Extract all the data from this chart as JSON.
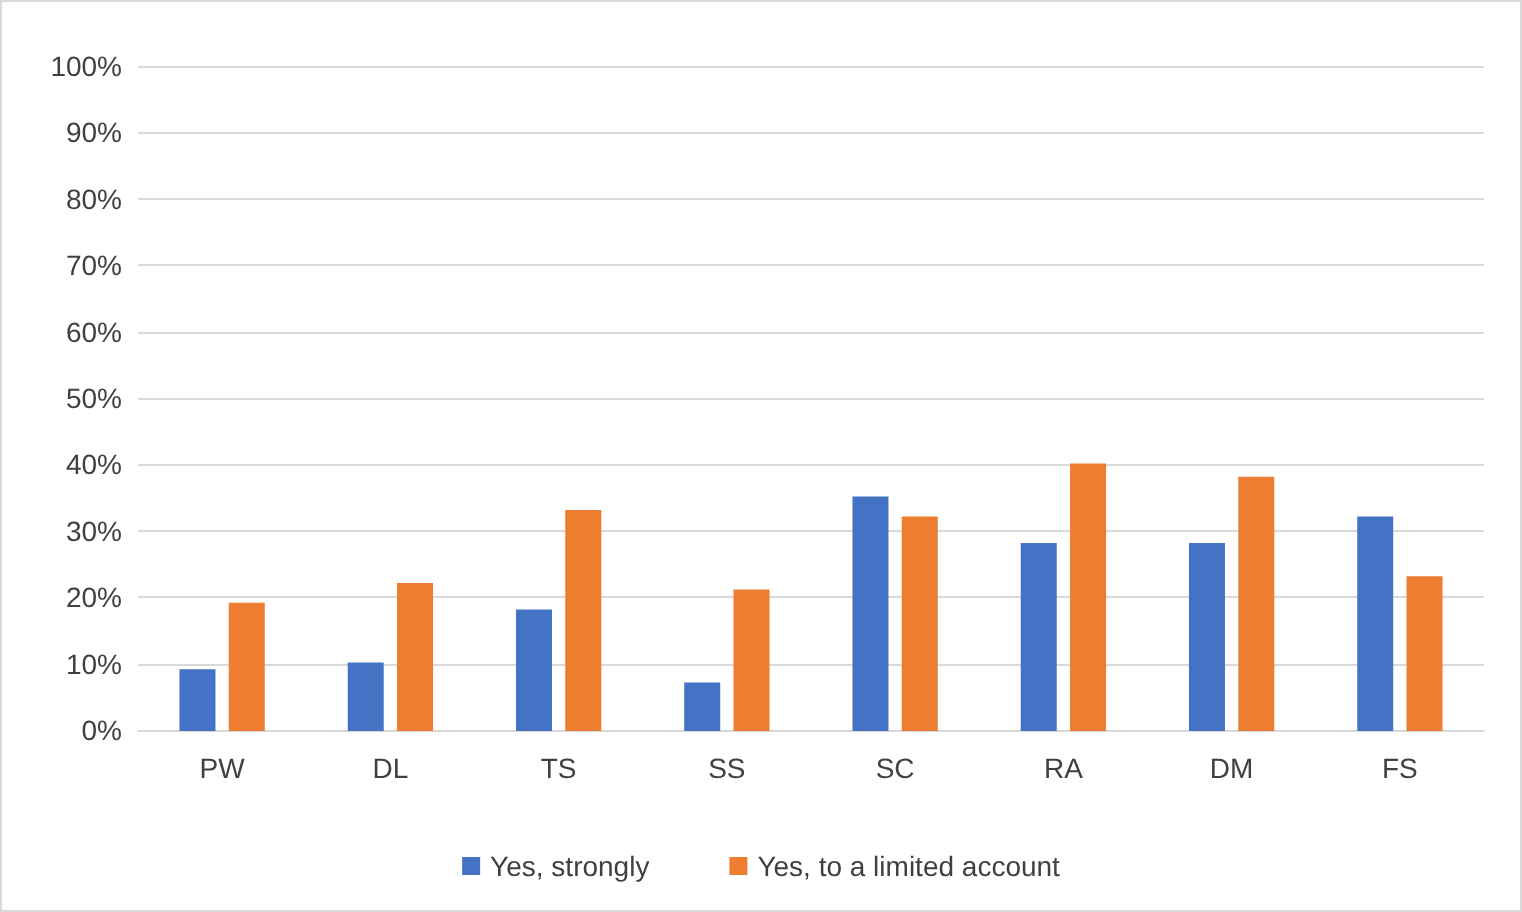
{
  "chart_data": {
    "type": "bar",
    "categories": [
      "PW",
      "DL",
      "TS",
      "SS",
      "SC",
      "RA",
      "DM",
      "FS"
    ],
    "series": [
      {
        "name": "Yes, strongly",
        "color": "#4472c4",
        "values": [
          9,
          10,
          18,
          7,
          35,
          28,
          28,
          32
        ]
      },
      {
        "name": "Yes, to a limited account",
        "color": "#ed7d31",
        "values": [
          19,
          22,
          33,
          21,
          32,
          40,
          38,
          23
        ]
      }
    ],
    "ylim": [
      0,
      100
    ],
    "yticks": [
      {
        "value": 0,
        "label": "0%"
      },
      {
        "value": 10,
        "label": "10%"
      },
      {
        "value": 20,
        "label": "20%"
      },
      {
        "value": 30,
        "label": "30%"
      },
      {
        "value": 40,
        "label": "40%"
      },
      {
        "value": 50,
        "label": "50%"
      },
      {
        "value": 60,
        "label": "60%"
      },
      {
        "value": 70,
        "label": "70%"
      },
      {
        "value": 80,
        "label": "80%"
      },
      {
        "value": 90,
        "label": "90%"
      },
      {
        "value": 100,
        "label": "100%"
      }
    ],
    "grid": "y",
    "legend": "bottom"
  }
}
